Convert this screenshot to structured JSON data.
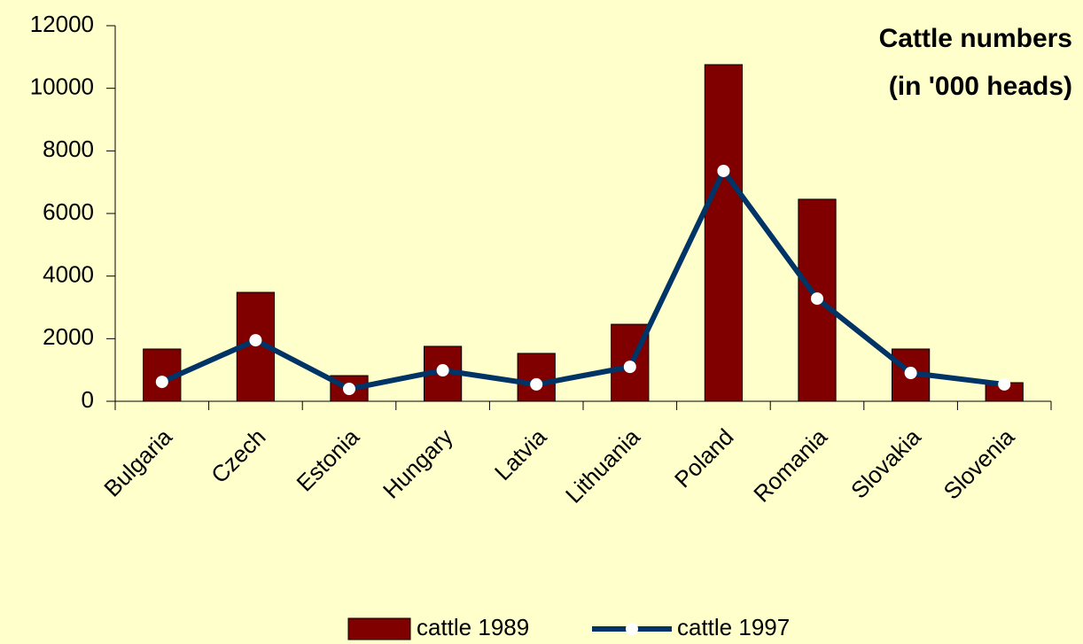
{
  "chart_data": {
    "type": "bar",
    "title": [
      "Cattle numbers",
      "(in '000 heads)"
    ],
    "categories": [
      "Bulgaria",
      "Czech",
      "Estonia",
      "Hungary",
      "Latvia",
      "Lithuania",
      "Poland",
      "Romania",
      "Slovakia",
      "Slovenia"
    ],
    "series": [
      {
        "name": "cattle 1989",
        "type": "bar",
        "color": "#800000",
        "values": [
          1670,
          3480,
          820,
          1755,
          1530,
          2460,
          10755,
          6455,
          1670,
          595
        ]
      },
      {
        "name": "cattle 1997",
        "type": "line",
        "color": "#003366",
        "values": [
          620,
          1950,
          395,
          990,
          540,
          1100,
          7360,
          3280,
          905,
          540
        ]
      }
    ],
    "ylim": [
      0,
      12000
    ],
    "yticks": [
      0,
      2000,
      4000,
      6000,
      8000,
      10000,
      12000
    ],
    "legend": "bottom"
  }
}
